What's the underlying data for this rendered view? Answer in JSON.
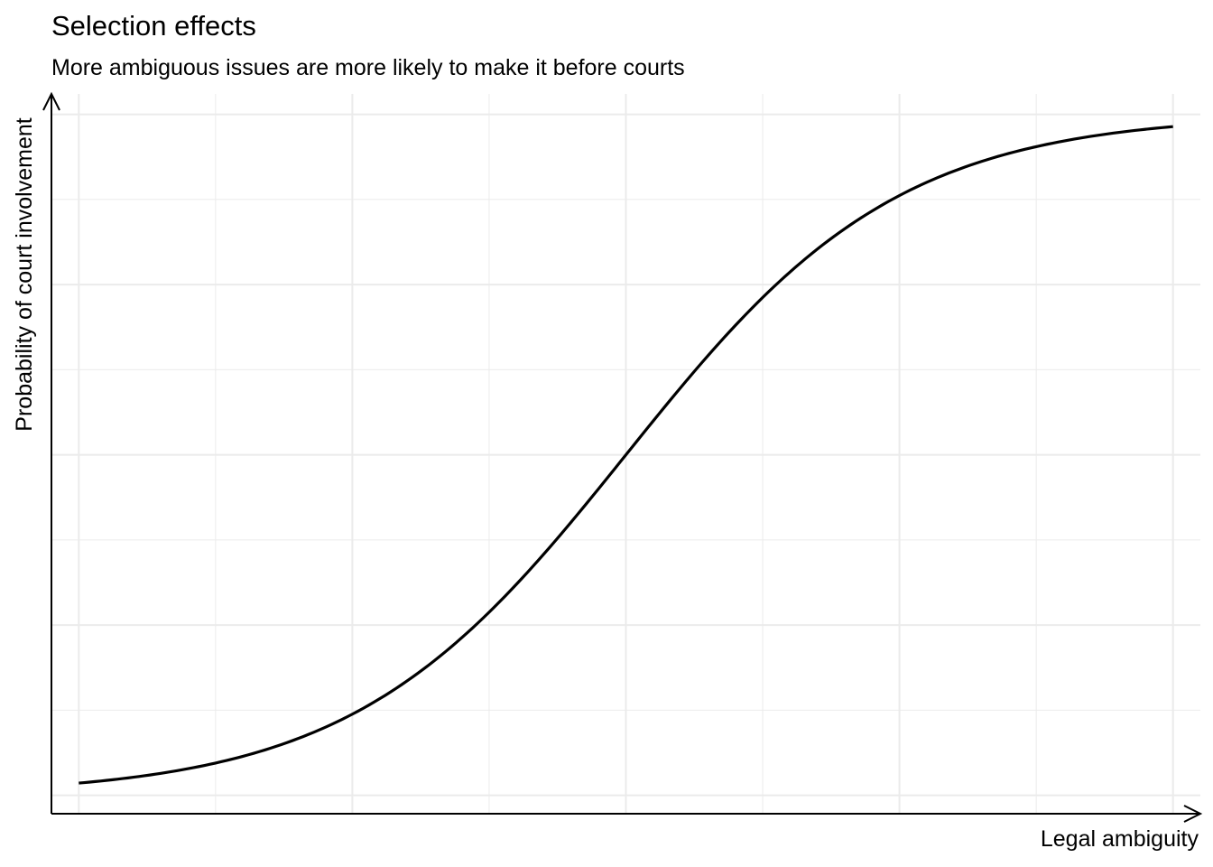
{
  "chart_data": {
    "type": "line",
    "title": "Selection effects",
    "subtitle": "More ambiguous issues are more likely to make it before courts",
    "xlabel": "Legal ambiguity",
    "ylabel": "Probability of court involvement",
    "xlim": [
      -4.2,
      4.2
    ],
    "ylim": [
      -0.027,
      1.03
    ],
    "grid": true,
    "tick_labels_shown": false,
    "axis_arrows": true,
    "line_color": "#000000",
    "grid_color": "#ebebeb",
    "series": [
      {
        "x": [
          -4.0,
          -3.5,
          -3.0,
          -2.5,
          -2.0,
          -1.5,
          -1.0,
          -0.5,
          0.0,
          0.5,
          1.0,
          1.5,
          2.0,
          2.5,
          3.0,
          3.5,
          4.0
        ],
        "y": [
          0.018,
          0.029,
          0.047,
          0.076,
          0.119,
          0.182,
          0.269,
          0.378,
          0.5,
          0.622,
          0.731,
          0.818,
          0.881,
          0.924,
          0.953,
          0.971,
          0.982
        ]
      }
    ]
  }
}
